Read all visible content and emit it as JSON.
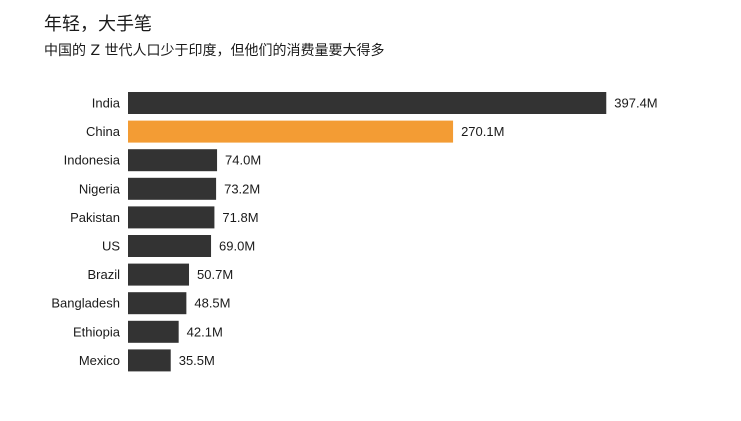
{
  "title": "年轻，大手笔",
  "subtitle": "中国的 Z 世代人口少于印度，但他们的消费量要大得多",
  "colors": {
    "default_bar": "#333333",
    "highlight_bar": "#f39c34",
    "text": "#1a1a1a"
  },
  "chart_data": {
    "type": "bar",
    "orientation": "horizontal",
    "categories": [
      "India",
      "China",
      "Indonesia",
      "Nigeria",
      "Pakistan",
      "US",
      "Brazil",
      "Bangladesh",
      "Ethiopia",
      "Mexico"
    ],
    "values": [
      397.4,
      270.1,
      74.0,
      73.2,
      71.8,
      69.0,
      50.7,
      48.5,
      42.1,
      35.5
    ],
    "value_labels": [
      "397.4M",
      "270.1M",
      "74.0M",
      "73.2M",
      "71.8M",
      "69.0M",
      "50.7M",
      "48.5M",
      "42.1M",
      "35.5M"
    ],
    "highlight": [
      "China"
    ],
    "grid": false,
    "legend": "none"
  }
}
